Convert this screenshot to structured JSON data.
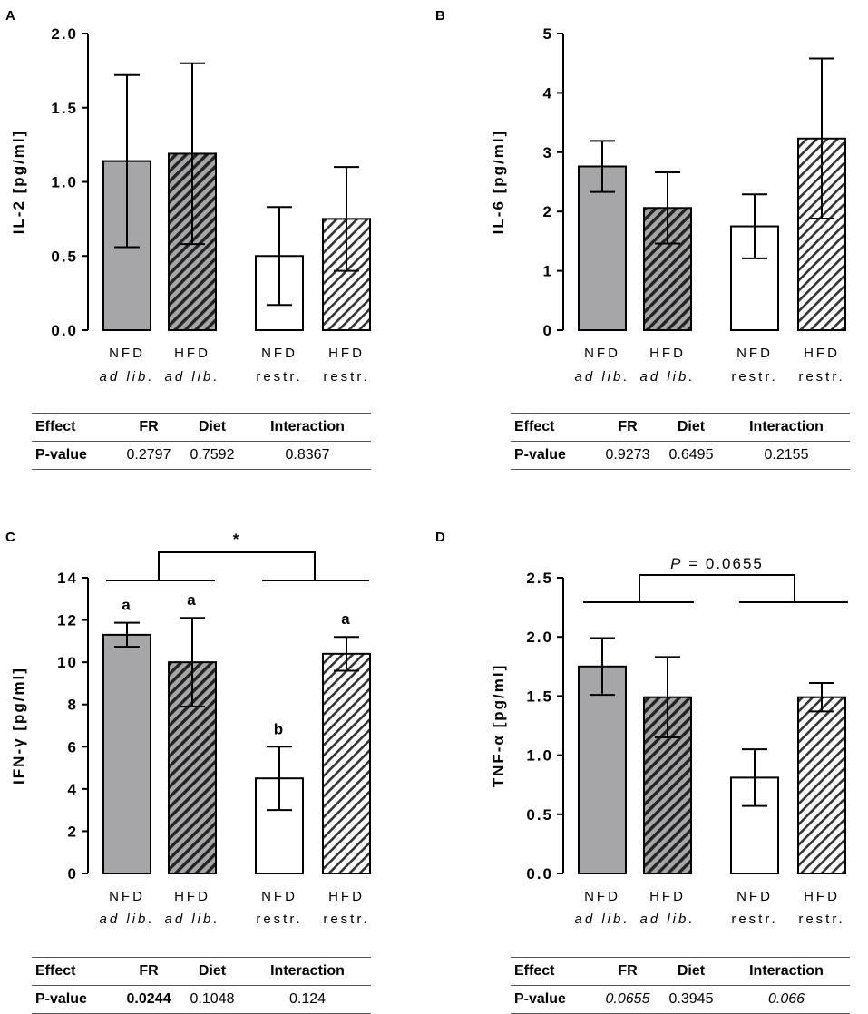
{
  "categories": [
    {
      "line1": "NFD",
      "line2": "ad lib.",
      "line2_italic": true
    },
    {
      "line1": "HFD",
      "line2": "ad lib.",
      "line2_italic": true
    },
    {
      "line1": "NFD",
      "line2": "restr.",
      "line2_italic": false
    },
    {
      "line1": "HFD",
      "line2": "restr.",
      "line2_italic": false
    }
  ],
  "bar_styles": [
    {
      "fill": "#a6a6a8",
      "pattern": "none"
    },
    {
      "fill": "#a6a6a8",
      "pattern": "hatch-dark"
    },
    {
      "fill": "#ffffff",
      "pattern": "none"
    },
    {
      "fill": "#ffffff",
      "pattern": "hatch-light"
    }
  ],
  "table_headers": [
    "Effect",
    "FR",
    "Diet",
    "Interaction"
  ],
  "chart_data": [
    {
      "panel": "A",
      "type": "bar",
      "ylabel": "IL-2 [pg/ml]",
      "ylim": [
        0,
        2.0
      ],
      "yticks": [
        "0.0",
        "0.5",
        "1.0",
        "1.5",
        "2.0"
      ],
      "categories": [
        "NFD ad lib.",
        "HFD ad lib.",
        "NFD restr.",
        "HFD restr."
      ],
      "values": [
        1.14,
        1.19,
        0.5,
        0.75
      ],
      "error": [
        0.58,
        0.61,
        0.33,
        0.35
      ],
      "letters": [
        "",
        "",
        "",
        ""
      ],
      "bracket": null,
      "table": {
        "label": "P-value",
        "values": [
          "0.2797",
          "0.7592",
          "0.8367"
        ],
        "styles": [
          "",
          "",
          ""
        ]
      }
    },
    {
      "panel": "B",
      "type": "bar",
      "ylabel": "IL-6 [pg/ml]",
      "ylim": [
        0,
        5
      ],
      "yticks": [
        "0",
        "1",
        "2",
        "3",
        "4",
        "5"
      ],
      "categories": [
        "NFD ad lib.",
        "HFD ad lib.",
        "NFD restr.",
        "HFD restr."
      ],
      "values": [
        2.76,
        2.06,
        1.75,
        3.23
      ],
      "error": [
        0.43,
        0.6,
        0.54,
        1.35
      ],
      "letters": [
        "",
        "",
        "",
        ""
      ],
      "bracket": null,
      "table": {
        "label": "P-value",
        "values": [
          "0.9273",
          "0.6495",
          "0.2155"
        ],
        "styles": [
          "",
          "",
          ""
        ]
      }
    },
    {
      "panel": "C",
      "type": "bar",
      "ylabel": "IFN-γ [pg/ml]",
      "ylim": [
        0,
        14
      ],
      "yticks": [
        "0",
        "2",
        "4",
        "6",
        "8",
        "10",
        "12",
        "14"
      ],
      "categories": [
        "NFD ad lib.",
        "HFD ad lib.",
        "NFD restr.",
        "HFD restr."
      ],
      "values": [
        11.3,
        10.0,
        4.5,
        10.4
      ],
      "error": [
        0.57,
        2.1,
        1.5,
        0.8
      ],
      "letters": [
        "a",
        "a",
        "b",
        "a"
      ],
      "bracket": {
        "label": "*",
        "italic_prefix": ""
      },
      "table": {
        "label": "P-value",
        "values": [
          "0.0244",
          "0.1048",
          "0.124"
        ],
        "styles": [
          "bold",
          "",
          ""
        ]
      }
    },
    {
      "panel": "D",
      "type": "bar",
      "ylabel": "TNF-α [pg/ml]",
      "ylim": [
        0,
        2.5
      ],
      "yticks": [
        "0.0",
        "0.5",
        "1.0",
        "1.5",
        "2.0",
        "2.5"
      ],
      "categories": [
        "NFD ad lib.",
        "HFD ad lib.",
        "NFD restr.",
        "HFD restr."
      ],
      "values": [
        1.75,
        1.49,
        0.81,
        1.49
      ],
      "error": [
        0.24,
        0.34,
        0.24,
        0.12
      ],
      "letters": [
        "",
        "",
        "",
        ""
      ],
      "bracket": {
        "label": " = 0.0655",
        "italic_prefix": "P"
      },
      "table": {
        "label": "P-value",
        "values": [
          "0.0655",
          "0.3945",
          "0.066"
        ],
        "styles": [
          "ital",
          "",
          "ital"
        ]
      }
    }
  ]
}
